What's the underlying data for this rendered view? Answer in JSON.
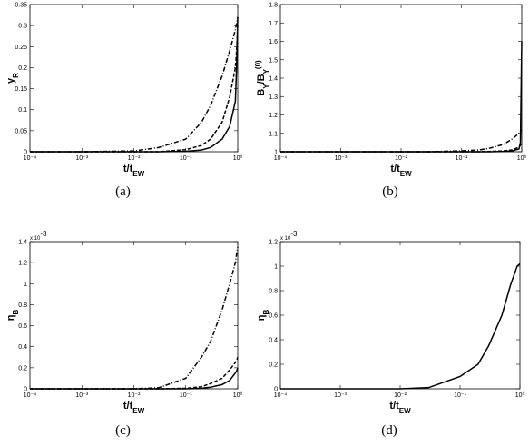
{
  "chart_data": [
    {
      "type": "line",
      "caption": "(a)",
      "xlabel": [
        {
          "text": "t/t"
        },
        {
          "text": "EW",
          "shift": "sub"
        }
      ],
      "ylabel": [
        {
          "text": "y"
        },
        {
          "text": "R",
          "shift": "sub"
        }
      ],
      "log_x": true,
      "xlim": [
        0.0001,
        1
      ],
      "xticks": [
        {
          "value": 0.0001,
          "label": "10⁻⁴"
        },
        {
          "value": 0.001,
          "label": "10⁻³"
        },
        {
          "value": 0.01,
          "label": "10⁻²"
        },
        {
          "value": 0.1,
          "label": "10⁻¹"
        },
        {
          "value": 1,
          "label": "10⁰"
        }
      ],
      "ylim": [
        0,
        0.35
      ],
      "yticks": [
        0,
        0.05,
        0.1,
        0.15,
        0.2,
        0.25,
        0.3,
        0.35
      ],
      "x": [
        0.0001,
        0.001,
        0.01,
        0.03,
        0.1,
        0.2,
        0.3,
        0.5,
        0.7,
        0.9,
        0.95,
        1
      ],
      "series": [
        {
          "style": "solid",
          "color": "#000000",
          "values": [
            0,
            0,
            0,
            0,
            0.001,
            0.004,
            0.01,
            0.03,
            0.06,
            0.12,
            0.2,
            0.32
          ]
        },
        {
          "style": "dashed",
          "color": "#000000",
          "values": [
            0,
            0,
            0,
            0,
            0.005,
            0.015,
            0.03,
            0.07,
            0.13,
            0.2,
            0.24,
            0.3
          ]
        },
        {
          "style": "dashdot",
          "color": "#000000",
          "values": [
            0,
            0,
            0.002,
            0.01,
            0.03,
            0.07,
            0.11,
            0.18,
            0.24,
            0.29,
            0.305,
            0.32
          ]
        }
      ]
    },
    {
      "type": "line",
      "caption": "(b)",
      "xlabel": [
        {
          "text": "t/t"
        },
        {
          "text": "EW",
          "shift": "sub"
        }
      ],
      "ylabel": [
        {
          "text": "B"
        },
        {
          "text": "Y",
          "shift": "sub"
        },
        {
          "text": "/B"
        },
        {
          "text": "Y",
          "shift": "sub"
        },
        {
          "text": "(0)",
          "shift": "super"
        }
      ],
      "log_x": true,
      "xlim": [
        0.0001,
        1
      ],
      "xticks": [
        {
          "value": 0.0001,
          "label": "10⁻⁴"
        },
        {
          "value": 0.001,
          "label": "10⁻³"
        },
        {
          "value": 0.01,
          "label": "10⁻²"
        },
        {
          "value": 0.1,
          "label": "10⁻¹"
        },
        {
          "value": 1,
          "label": "10⁰"
        }
      ],
      "ylim": [
        1,
        1.8
      ],
      "yticks": [
        1,
        1.1,
        1.2,
        1.3,
        1.4,
        1.5,
        1.6,
        1.7,
        1.8
      ],
      "x": [
        0.0001,
        0.001,
        0.01,
        0.03,
        0.1,
        0.2,
        0.3,
        0.5,
        0.7,
        0.9,
        0.95,
        1
      ],
      "series": [
        {
          "style": "solid",
          "color": "#000000",
          "values": [
            1,
            1,
            1,
            1,
            1,
            1,
            1,
            1.002,
            1.005,
            1.015,
            1.05,
            1.6
          ]
        },
        {
          "style": "dashed",
          "color": "#000000",
          "values": [
            1,
            1,
            1,
            1,
            1,
            1,
            1.002,
            1.005,
            1.01,
            1.025,
            1.035,
            1.05
          ]
        },
        {
          "style": "dashdot",
          "color": "#000000",
          "values": [
            1,
            1,
            1,
            1,
            1.005,
            1.01,
            1.02,
            1.04,
            1.07,
            1.1,
            1.11,
            1.12
          ]
        }
      ]
    },
    {
      "type": "line",
      "caption": "(c)",
      "xlabel": [
        {
          "text": "t/t"
        },
        {
          "text": "EW",
          "shift": "sub"
        }
      ],
      "ylabel": [
        {
          "text": "η"
        },
        {
          "text": "B",
          "shift": "sub"
        }
      ],
      "multiplier": [
        {
          "text": "x 10"
        },
        {
          "text": "-3",
          "shift": "super"
        }
      ],
      "log_x": true,
      "xlim": [
        0.0001,
        1
      ],
      "xticks": [
        {
          "value": 0.0001,
          "label": "10⁻⁴"
        },
        {
          "value": 0.001,
          "label": "10⁻³"
        },
        {
          "value": 0.01,
          "label": "10⁻²"
        },
        {
          "value": 0.1,
          "label": "10⁻¹"
        },
        {
          "value": 1,
          "label": "10⁰"
        }
      ],
      "ylim": [
        0,
        1.4
      ],
      "yticks": [
        0,
        0.2,
        0.4,
        0.6,
        0.8,
        1,
        1.2,
        1.4
      ],
      "x": [
        0.0001,
        0.001,
        0.01,
        0.03,
        0.1,
        0.2,
        0.3,
        0.5,
        0.7,
        0.9,
        0.95,
        1
      ],
      "series": [
        {
          "style": "solid",
          "color": "#000000",
          "values": [
            0,
            0,
            0,
            0,
            0,
            0.005,
            0.015,
            0.04,
            0.08,
            0.15,
            0.17,
            0.2
          ]
        },
        {
          "style": "dashed",
          "color": "#000000",
          "values": [
            0,
            0,
            0,
            0,
            0.005,
            0.02,
            0.05,
            0.1,
            0.18,
            0.25,
            0.27,
            0.3
          ]
        },
        {
          "style": "dashdot",
          "color": "#000000",
          "values": [
            0,
            0,
            0,
            0.01,
            0.1,
            0.3,
            0.45,
            0.75,
            1,
            1.2,
            1.28,
            1.35
          ]
        }
      ]
    },
    {
      "type": "line",
      "caption": "(d)",
      "xlabel": [
        {
          "text": "t/t"
        },
        {
          "text": "EW",
          "shift": "sub"
        }
      ],
      "ylabel": [
        {
          "text": "η"
        },
        {
          "text": "B",
          "shift": "sub"
        }
      ],
      "multiplier": [
        {
          "text": "x 10"
        },
        {
          "text": "-3",
          "shift": "super"
        }
      ],
      "log_x": true,
      "xlim": [
        0.0001,
        1
      ],
      "xticks": [
        {
          "value": 0.0001,
          "label": "10⁻⁴"
        },
        {
          "value": 0.001,
          "label": "10⁻³"
        },
        {
          "value": 0.01,
          "label": "10⁻²"
        },
        {
          "value": 0.1,
          "label": "10⁻¹"
        },
        {
          "value": 1,
          "label": "10⁰"
        }
      ],
      "ylim": [
        0,
        1.2
      ],
      "yticks": [
        0,
        0.2,
        0.4,
        0.6,
        0.8,
        1,
        1.2
      ],
      "x": [
        0.0001,
        0.001,
        0.01,
        0.03,
        0.1,
        0.2,
        0.3,
        0.5,
        0.7,
        0.9,
        0.95,
        1
      ],
      "series": [
        {
          "style": "solid",
          "color": "#000000",
          "values": [
            0,
            0,
            0,
            0.01,
            0.1,
            0.2,
            0.35,
            0.6,
            0.85,
            1,
            1.01,
            1.02
          ]
        }
      ]
    }
  ]
}
